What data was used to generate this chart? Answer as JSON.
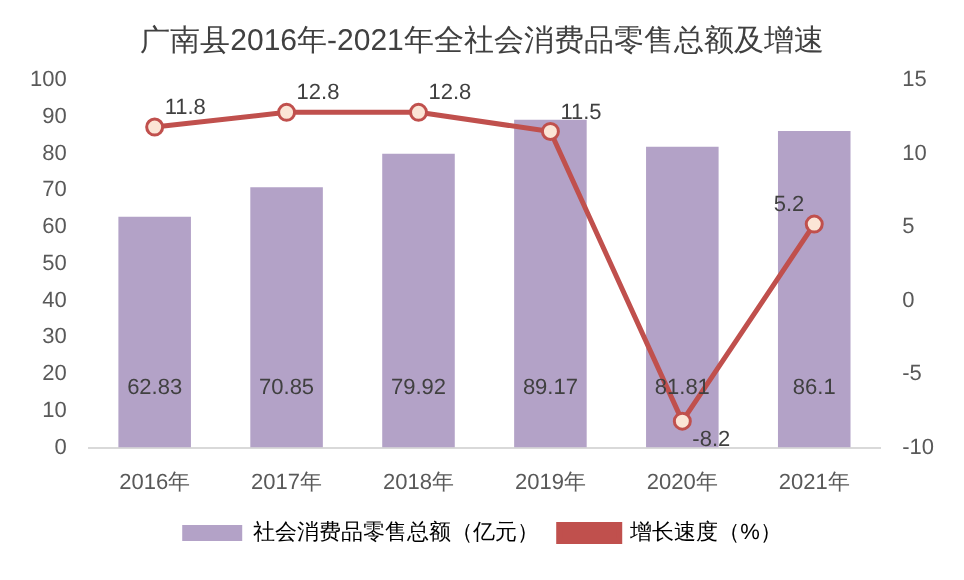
{
  "chart_data": {
    "type": "bar",
    "title": "广南县2016年-2021年全社会消费品零售总额及增速",
    "categories": [
      "2016年",
      "2017年",
      "2018年",
      "2019年",
      "2020年",
      "2021年"
    ],
    "series": [
      {
        "name": "社会消费品零售总额（亿元）",
        "color": "#b3a2c7",
        "values": [
          62.83,
          70.85,
          79.92,
          89.17,
          81.81,
          86.1
        ]
      },
      {
        "name": "增长速度（%）",
        "type": "line",
        "axis": "y2",
        "color": "#c0504d",
        "marker": "circle",
        "values": [
          11.8,
          12.8,
          12.8,
          11.5,
          -8.2,
          5.2
        ]
      }
    ],
    "ylim": [
      0,
      100
    ],
    "yticks": [
      0,
      10,
      20,
      30,
      40,
      50,
      60,
      70,
      80,
      90,
      100
    ],
    "y2lim": [
      -10,
      15
    ],
    "y2ticks": [
      -10,
      -5,
      0,
      5,
      10,
      15
    ],
    "data_labels": true,
    "legend": "bottom",
    "grid": false
  }
}
